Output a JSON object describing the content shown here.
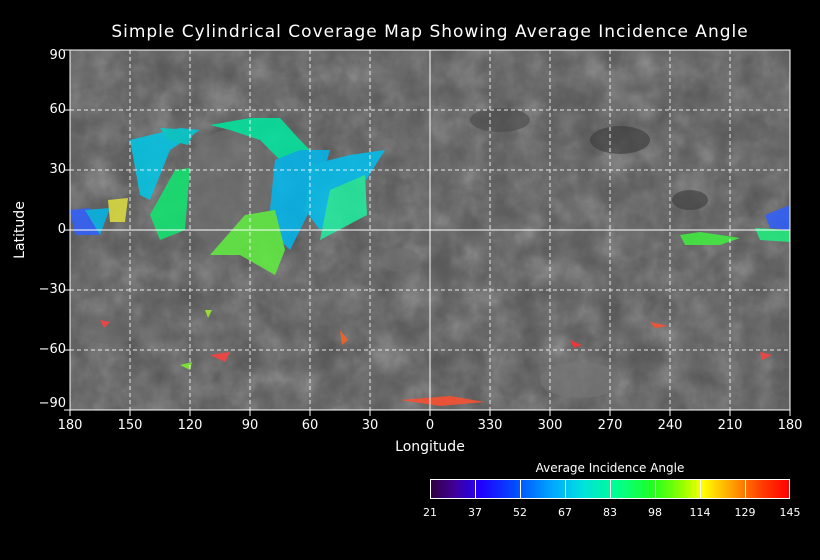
{
  "title": "Simple Cylindrical Coverage Map Showing Average Incidence Angle",
  "xlabel": "Longitude",
  "ylabel": "Latitude",
  "x_ticks": [
    "180",
    "150",
    "120",
    "90",
    "60",
    "30",
    "0",
    "330",
    "300",
    "270",
    "240",
    "210",
    "180"
  ],
  "y_ticks": [
    "90",
    "60",
    "30",
    "0",
    "−30",
    "−60",
    "−90"
  ],
  "colorbar": {
    "title": "Average Incidence Angle",
    "ticks": [
      "21",
      "37",
      "52",
      "67",
      "83",
      "98",
      "114",
      "129",
      "145"
    ]
  },
  "colors": {
    "grid": "#ffffff",
    "background": "#000000"
  }
}
